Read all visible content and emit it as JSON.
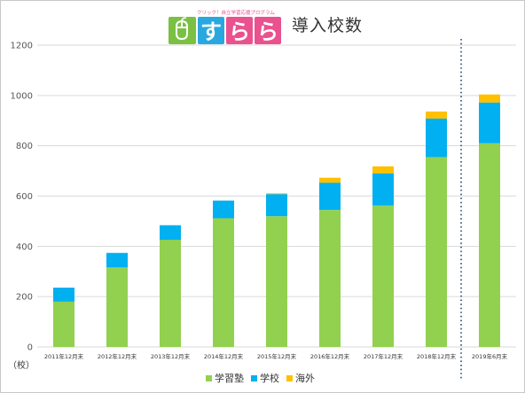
{
  "logo": {
    "tagline": "クリック！自立学習応援プログラム",
    "letters": [
      "す",
      "ら",
      "ら"
    ]
  },
  "colors": {
    "series": [
      "#92d050",
      "#00b0f0",
      "#ffc000"
    ],
    "grid": "#d9d9d9",
    "divider": "#1f4e79",
    "logo_green": "#7ac143",
    "logo_blue": "#29a8e0",
    "logo_pink": "#e9528e"
  },
  "chart_data": {
    "type": "bar",
    "stacked": true,
    "title": "導入校数",
    "unit_label": "（校）",
    "categories": [
      "2011年12月末",
      "2012年12月末",
      "2013年12月末",
      "2014年12月末",
      "2015年12月末",
      "2016年12月末",
      "2017年12月末",
      "2018年12月末",
      "2019年6月末"
    ],
    "series": [
      {
        "name": "学習塾",
        "values": [
          180,
          316,
          426,
          512,
          520,
          545,
          562,
          755,
          810
        ]
      },
      {
        "name": "学校",
        "values": [
          56,
          58,
          58,
          70,
          88,
          108,
          128,
          153,
          162
        ]
      },
      {
        "name": "海外",
        "values": [
          0,
          0,
          0,
          0,
          3,
          20,
          28,
          28,
          32
        ]
      }
    ],
    "yticks": [
      0,
      200,
      400,
      600,
      800,
      1000,
      1200
    ],
    "ylim": [
      0,
      1200
    ],
    "grid": true,
    "legend_position": "bottom",
    "divider_between": [
      "2018年12月末",
      "2019年6月末"
    ]
  }
}
